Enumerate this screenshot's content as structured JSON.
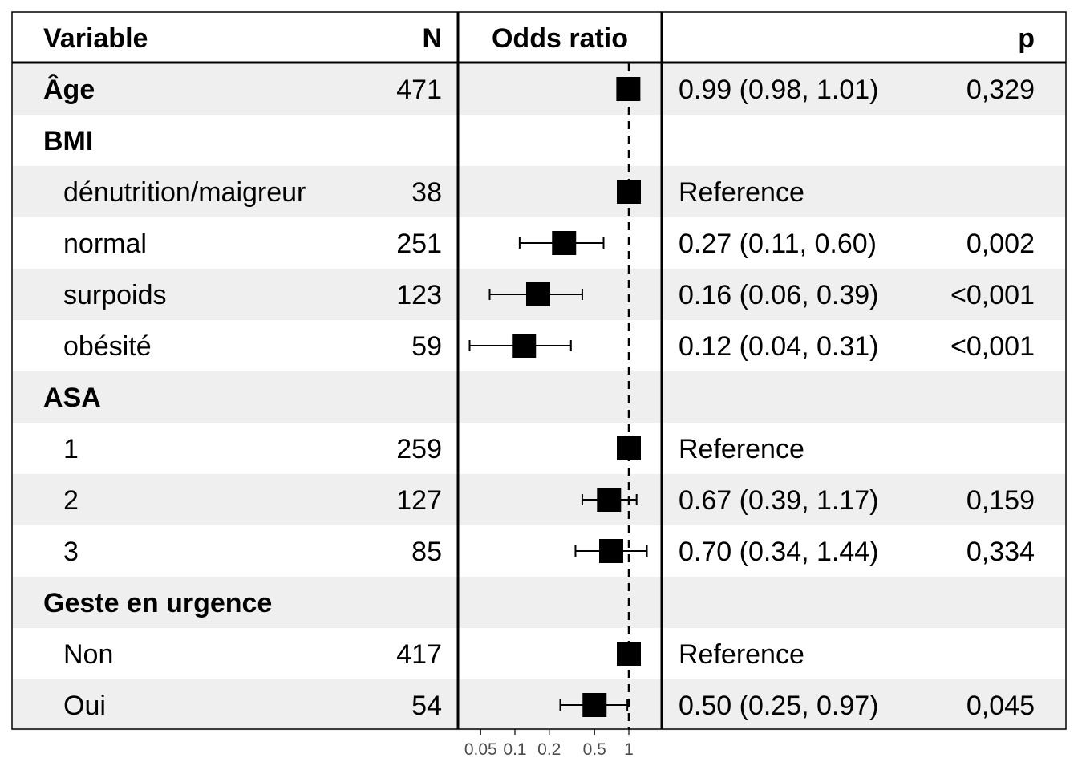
{
  "header": {
    "variable": "Variable",
    "n": "N",
    "or": "Odds ratio",
    "p": "p"
  },
  "rows": [
    {
      "label": "Âge",
      "group": true,
      "n": "471",
      "estimate_text": "0.99 (0.98, 1.01)",
      "p": "0,329"
    },
    {
      "label": "BMI",
      "group": true,
      "n": "",
      "estimate_text": "",
      "p": ""
    },
    {
      "label": "dénutrition/maigreur",
      "group": false,
      "n": "38",
      "estimate_text": "Reference",
      "p": ""
    },
    {
      "label": "normal",
      "group": false,
      "n": "251",
      "estimate_text": "0.27 (0.11, 0.60)",
      "p": "0,002"
    },
    {
      "label": "surpoids",
      "group": false,
      "n": "123",
      "estimate_text": "0.16 (0.06, 0.39)",
      "p": "<0,001"
    },
    {
      "label": "obésité",
      "group": false,
      "n": "59",
      "estimate_text": "0.12 (0.04, 0.31)",
      "p": "<0,001"
    },
    {
      "label": "ASA",
      "group": true,
      "n": "",
      "estimate_text": "",
      "p": ""
    },
    {
      "label": "1",
      "group": false,
      "n": "259",
      "estimate_text": "Reference",
      "p": ""
    },
    {
      "label": "2",
      "group": false,
      "n": "127",
      "estimate_text": "0.67 (0.39, 1.17)",
      "p": "0,159"
    },
    {
      "label": "3",
      "group": false,
      "n": "85",
      "estimate_text": "0.70 (0.34, 1.44)",
      "p": "0,334"
    },
    {
      "label": "Geste en urgence",
      "group": true,
      "n": "",
      "estimate_text": "",
      "p": ""
    },
    {
      "label": "Non",
      "group": false,
      "n": "417",
      "estimate_text": "Reference",
      "p": ""
    },
    {
      "label": "Oui",
      "group": false,
      "n": "54",
      "estimate_text": "0.50 (0.25, 0.97)",
      "p": "0,045"
    }
  ],
  "chart_data": {
    "type": "scatter",
    "xscale": "log",
    "xlim": [
      0.03,
      1.5
    ],
    "xticks": [
      0.05,
      0.1,
      0.2,
      0.5,
      1
    ],
    "xtick_labels": [
      "0.05",
      "0.1",
      "0.2",
      "0.5",
      "1"
    ],
    "reference_line": 1,
    "estimates": [
      {
        "row": "Âge",
        "or": 0.99,
        "lo": 0.98,
        "hi": 1.01
      },
      {
        "row": "dénutrition/maigreur",
        "or": 1,
        "lo": null,
        "hi": null
      },
      {
        "row": "normal",
        "or": 0.27,
        "lo": 0.11,
        "hi": 0.6
      },
      {
        "row": "surpoids",
        "or": 0.16,
        "lo": 0.06,
        "hi": 0.39
      },
      {
        "row": "obésité",
        "or": 0.12,
        "lo": 0.04,
        "hi": 0.31
      },
      {
        "row": "1",
        "or": 1,
        "lo": null,
        "hi": null
      },
      {
        "row": "2",
        "or": 0.67,
        "lo": 0.39,
        "hi": 1.17
      },
      {
        "row": "3",
        "or": 0.7,
        "lo": 0.34,
        "hi": 1.44
      },
      {
        "row": "Non",
        "or": 1,
        "lo": null,
        "hi": null
      },
      {
        "row": "Oui",
        "or": 0.5,
        "lo": 0.25,
        "hi": 0.97
      }
    ]
  },
  "colors": {
    "stripe": "#efefef",
    "mark": "#000000",
    "tick_text": "#4d4d4d"
  }
}
